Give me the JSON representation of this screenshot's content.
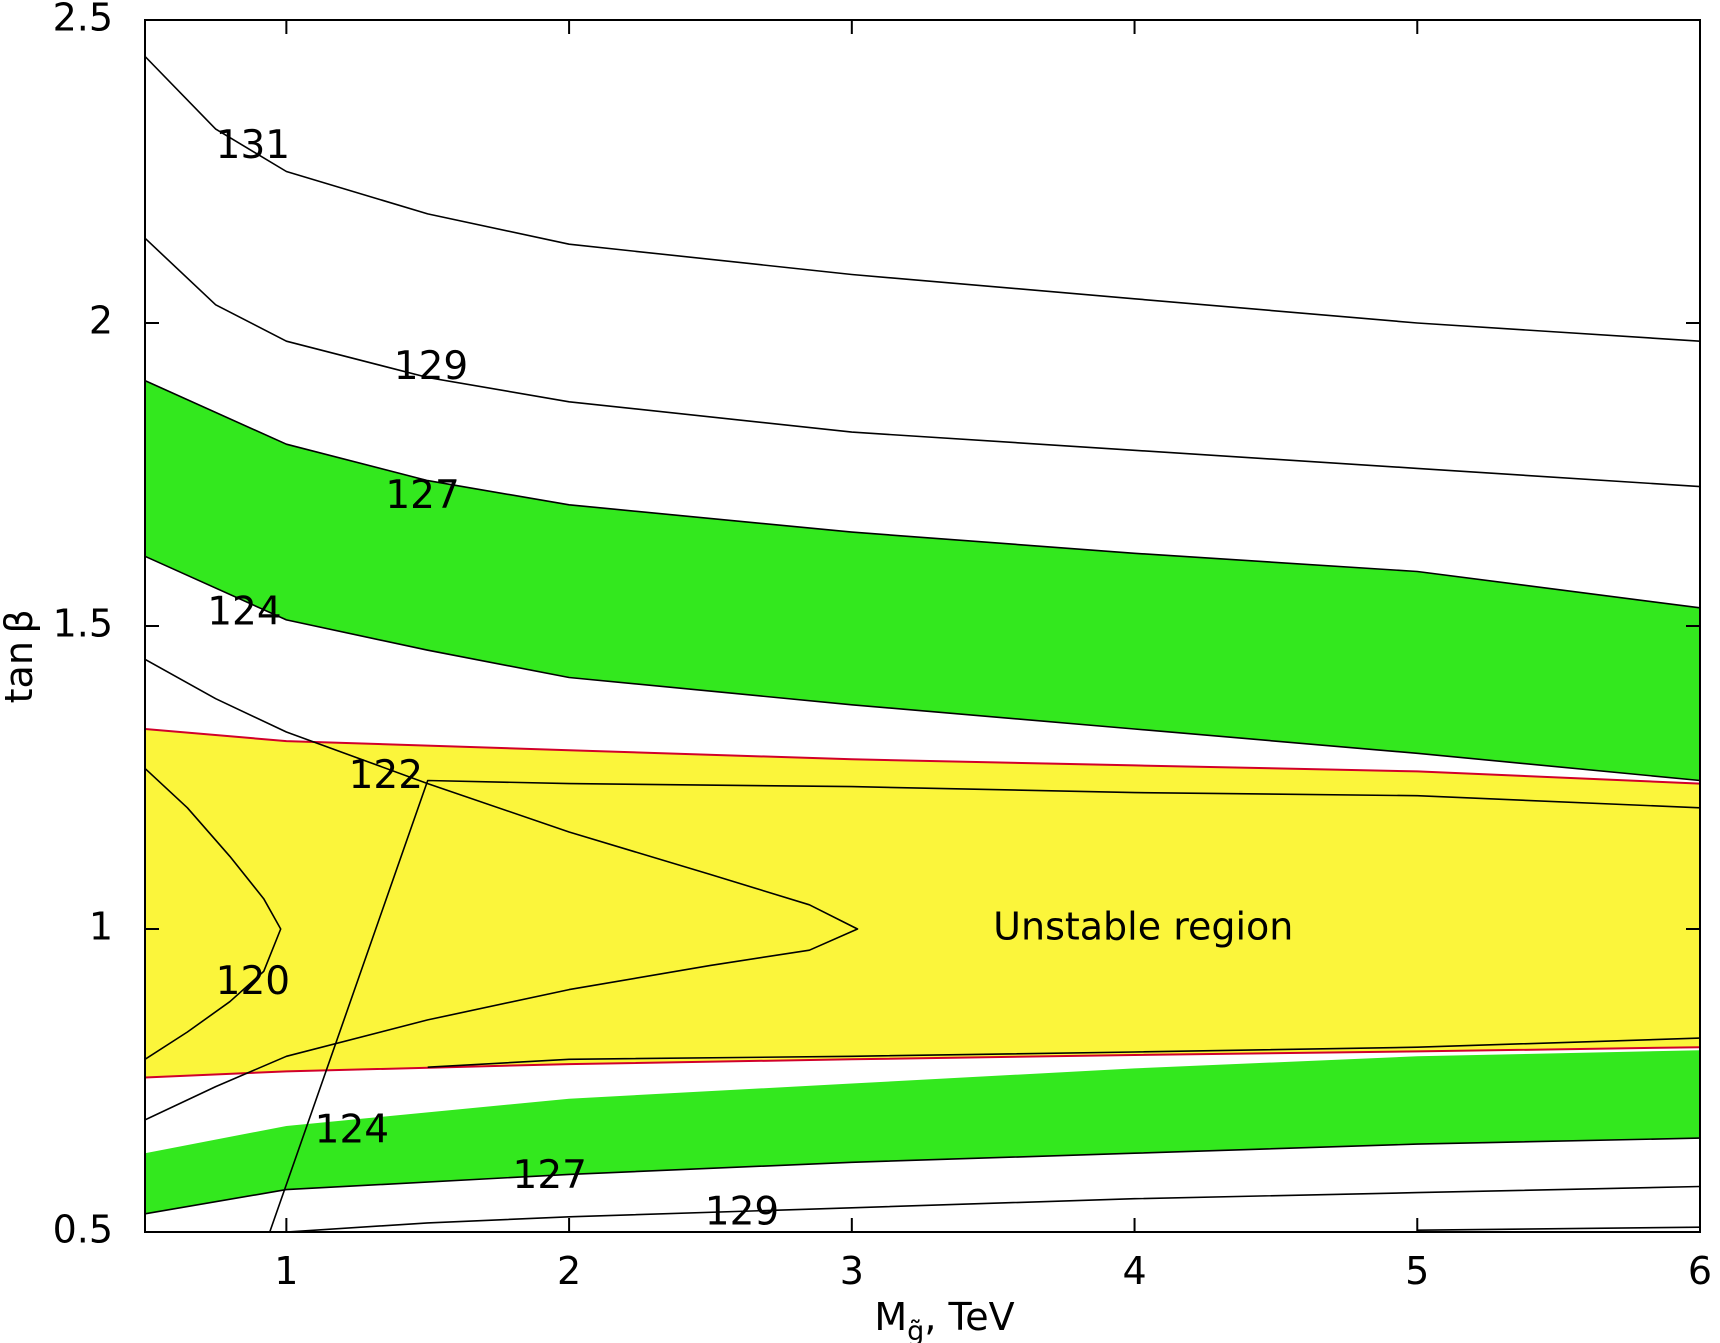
{
  "chart_data": {
    "type": "contour",
    "xlabel": "M",
    "xlabel_sub": "g̃",
    "xlabel_unit": ", TeV",
    "ylabel": "tan β",
    "xlim": [
      0.5,
      6
    ],
    "ylim": [
      0.5,
      2.5
    ],
    "xticks": [
      1,
      2,
      3,
      4,
      5,
      6
    ],
    "yticks": [
      0.5,
      1,
      1.5,
      2,
      2.5
    ],
    "grid": false,
    "colors": {
      "green_band": "#33e81e",
      "unstable": "#fbf53b",
      "stability_boundary": "#d1002a",
      "contour": "#000000"
    },
    "annotation": "Unstable region",
    "annotation_at": [
      3.5,
      1.0
    ],
    "unstable_region": {
      "upper_boundary": [
        [
          0.5,
          1.33
        ],
        [
          1,
          1.31
        ],
        [
          2,
          1.295
        ],
        [
          3,
          1.28
        ],
        [
          4,
          1.27
        ],
        [
          5,
          1.26
        ],
        [
          6,
          1.24
        ]
      ],
      "lower_boundary": [
        [
          0.5,
          0.755
        ],
        [
          1,
          0.765
        ],
        [
          2,
          0.777
        ],
        [
          3,
          0.785
        ],
        [
          4,
          0.792
        ],
        [
          5,
          0.798
        ],
        [
          6,
          0.805
        ]
      ]
    },
    "bands": [
      {
        "name": "124-127 upper",
        "upper": [
          [
            0.5,
            1.905
          ],
          [
            1,
            1.8
          ],
          [
            1.5,
            1.74
          ],
          [
            2,
            1.7
          ],
          [
            3,
            1.655
          ],
          [
            4,
            1.62
          ],
          [
            5,
            1.59
          ],
          [
            6,
            1.53
          ]
        ],
        "lower": [
          [
            0.5,
            1.615
          ],
          [
            1,
            1.51
          ],
          [
            1.5,
            1.46
          ],
          [
            2,
            1.415
          ],
          [
            3,
            1.37
          ],
          [
            4,
            1.33
          ],
          [
            5,
            1.29
          ],
          [
            6,
            1.245
          ]
        ]
      },
      {
        "name": "124-127 lower",
        "upper": [
          [
            0.5,
            0.63
          ],
          [
            1,
            0.675
          ],
          [
            2,
            0.72
          ],
          [
            3,
            0.745
          ],
          [
            4,
            0.77
          ],
          [
            5,
            0.79
          ],
          [
            6,
            0.8
          ]
        ],
        "lower": [
          [
            0.5,
            0.53
          ],
          [
            1,
            0.57
          ],
          [
            2,
            0.595
          ],
          [
            3,
            0.615
          ],
          [
            4,
            0.63
          ],
          [
            5,
            0.645
          ],
          [
            6,
            0.655
          ]
        ]
      }
    ],
    "contours": [
      {
        "level": "131",
        "points": [
          [
            0.5,
            2.44
          ],
          [
            0.75,
            2.32
          ],
          [
            1,
            2.25
          ],
          [
            1.5,
            2.18
          ],
          [
            2,
            2.13
          ],
          [
            3,
            2.08
          ],
          [
            4,
            2.04
          ],
          [
            5,
            2.0
          ],
          [
            6,
            1.97
          ]
        ]
      },
      {
        "level": "129",
        "points": [
          [
            0.5,
            2.14
          ],
          [
            0.75,
            2.03
          ],
          [
            1,
            1.97
          ],
          [
            1.5,
            1.91
          ],
          [
            2,
            1.87
          ],
          [
            3,
            1.82
          ],
          [
            4,
            1.79
          ],
          [
            5,
            1.76
          ],
          [
            6,
            1.73
          ]
        ]
      },
      {
        "level": "127",
        "points": [
          [
            0.5,
            1.905
          ],
          [
            1,
            1.8
          ],
          [
            1.5,
            1.74
          ],
          [
            2,
            1.7
          ],
          [
            3,
            1.655
          ],
          [
            4,
            1.62
          ],
          [
            5,
            1.59
          ],
          [
            6,
            1.53
          ]
        ]
      },
      {
        "level": "124",
        "points": [
          [
            0.5,
            1.615
          ],
          [
            1,
            1.51
          ],
          [
            1.5,
            1.46
          ],
          [
            2,
            1.415
          ],
          [
            3,
            1.37
          ],
          [
            4,
            1.33
          ],
          [
            5,
            1.29
          ],
          [
            6,
            1.245
          ]
        ]
      },
      {
        "level": "122",
        "points": [
          [
            0.5,
            1.445
          ],
          [
            0.75,
            1.38
          ],
          [
            1,
            1.325
          ],
          [
            1.5,
            1.24
          ],
          [
            2,
            1.16
          ],
          [
            2.5,
            1.09
          ],
          [
            2.85,
            1.04
          ],
          [
            3.02,
            1.0
          ],
          [
            2.85,
            0.965
          ],
          [
            2.5,
            0.94
          ],
          [
            2,
            0.9
          ],
          [
            1.5,
            0.85
          ],
          [
            1,
            0.79
          ],
          [
            0.75,
            0.74
          ],
          [
            0.5,
            0.685
          ]
        ]
      },
      {
        "level": "120",
        "points": [
          [
            0.5,
            1.265
          ],
          [
            0.65,
            1.2
          ],
          [
            0.8,
            1.12
          ],
          [
            0.92,
            1.05
          ],
          [
            0.98,
            1.0
          ],
          [
            0.92,
            0.93
          ],
          [
            0.8,
            0.88
          ],
          [
            0.65,
            0.83
          ],
          [
            0.5,
            0.785
          ]
        ]
      },
      {
        "level": "",
        "points": [
          [
            0.9,
            0.445
          ],
          [
            1.5,
            1.245
          ],
          [
            2,
            1.24
          ],
          [
            3,
            1.235
          ],
          [
            4,
            1.225
          ],
          [
            5,
            1.22
          ],
          [
            6,
            1.2
          ]
        ]
      },
      {
        "level": "",
        "points": [
          [
            1.5,
            0.772
          ],
          [
            2,
            0.785
          ],
          [
            3,
            0.79
          ],
          [
            4,
            0.797
          ],
          [
            5,
            0.805
          ],
          [
            6,
            0.82
          ]
        ]
      },
      {
        "level": "127",
        "points": [
          [
            0.5,
            0.53
          ],
          [
            1,
            0.57
          ],
          [
            2,
            0.595
          ],
          [
            3,
            0.615
          ],
          [
            4,
            0.63
          ],
          [
            5,
            0.645
          ],
          [
            6,
            0.655
          ]
        ]
      },
      {
        "level": "129",
        "points": [
          [
            1,
            0.5
          ],
          [
            1.5,
            0.515
          ],
          [
            2,
            0.525
          ],
          [
            3,
            0.54
          ],
          [
            4,
            0.555
          ],
          [
            5,
            0.565
          ],
          [
            6,
            0.575
          ]
        ]
      },
      {
        "level": "",
        "points": [
          [
            5,
            0.503
          ],
          [
            6,
            0.508
          ]
        ]
      }
    ],
    "contour_labels": [
      {
        "text": "131",
        "at": [
          0.75,
          2.29
        ]
      },
      {
        "text": "129",
        "at": [
          1.38,
          1.925
        ]
      },
      {
        "text": "127",
        "at": [
          1.35,
          1.712
        ]
      },
      {
        "text": "124",
        "at": [
          0.72,
          1.52
        ]
      },
      {
        "text": "122",
        "at": [
          1.22,
          1.25
        ]
      },
      {
        "text": "120",
        "at": [
          0.75,
          0.91
        ]
      },
      {
        "text": "124",
        "at": [
          1.1,
          0.665
        ]
      },
      {
        "text": "127",
        "at": [
          1.8,
          0.59
        ]
      },
      {
        "text": "129",
        "at": [
          2.48,
          0.53
        ]
      }
    ]
  }
}
